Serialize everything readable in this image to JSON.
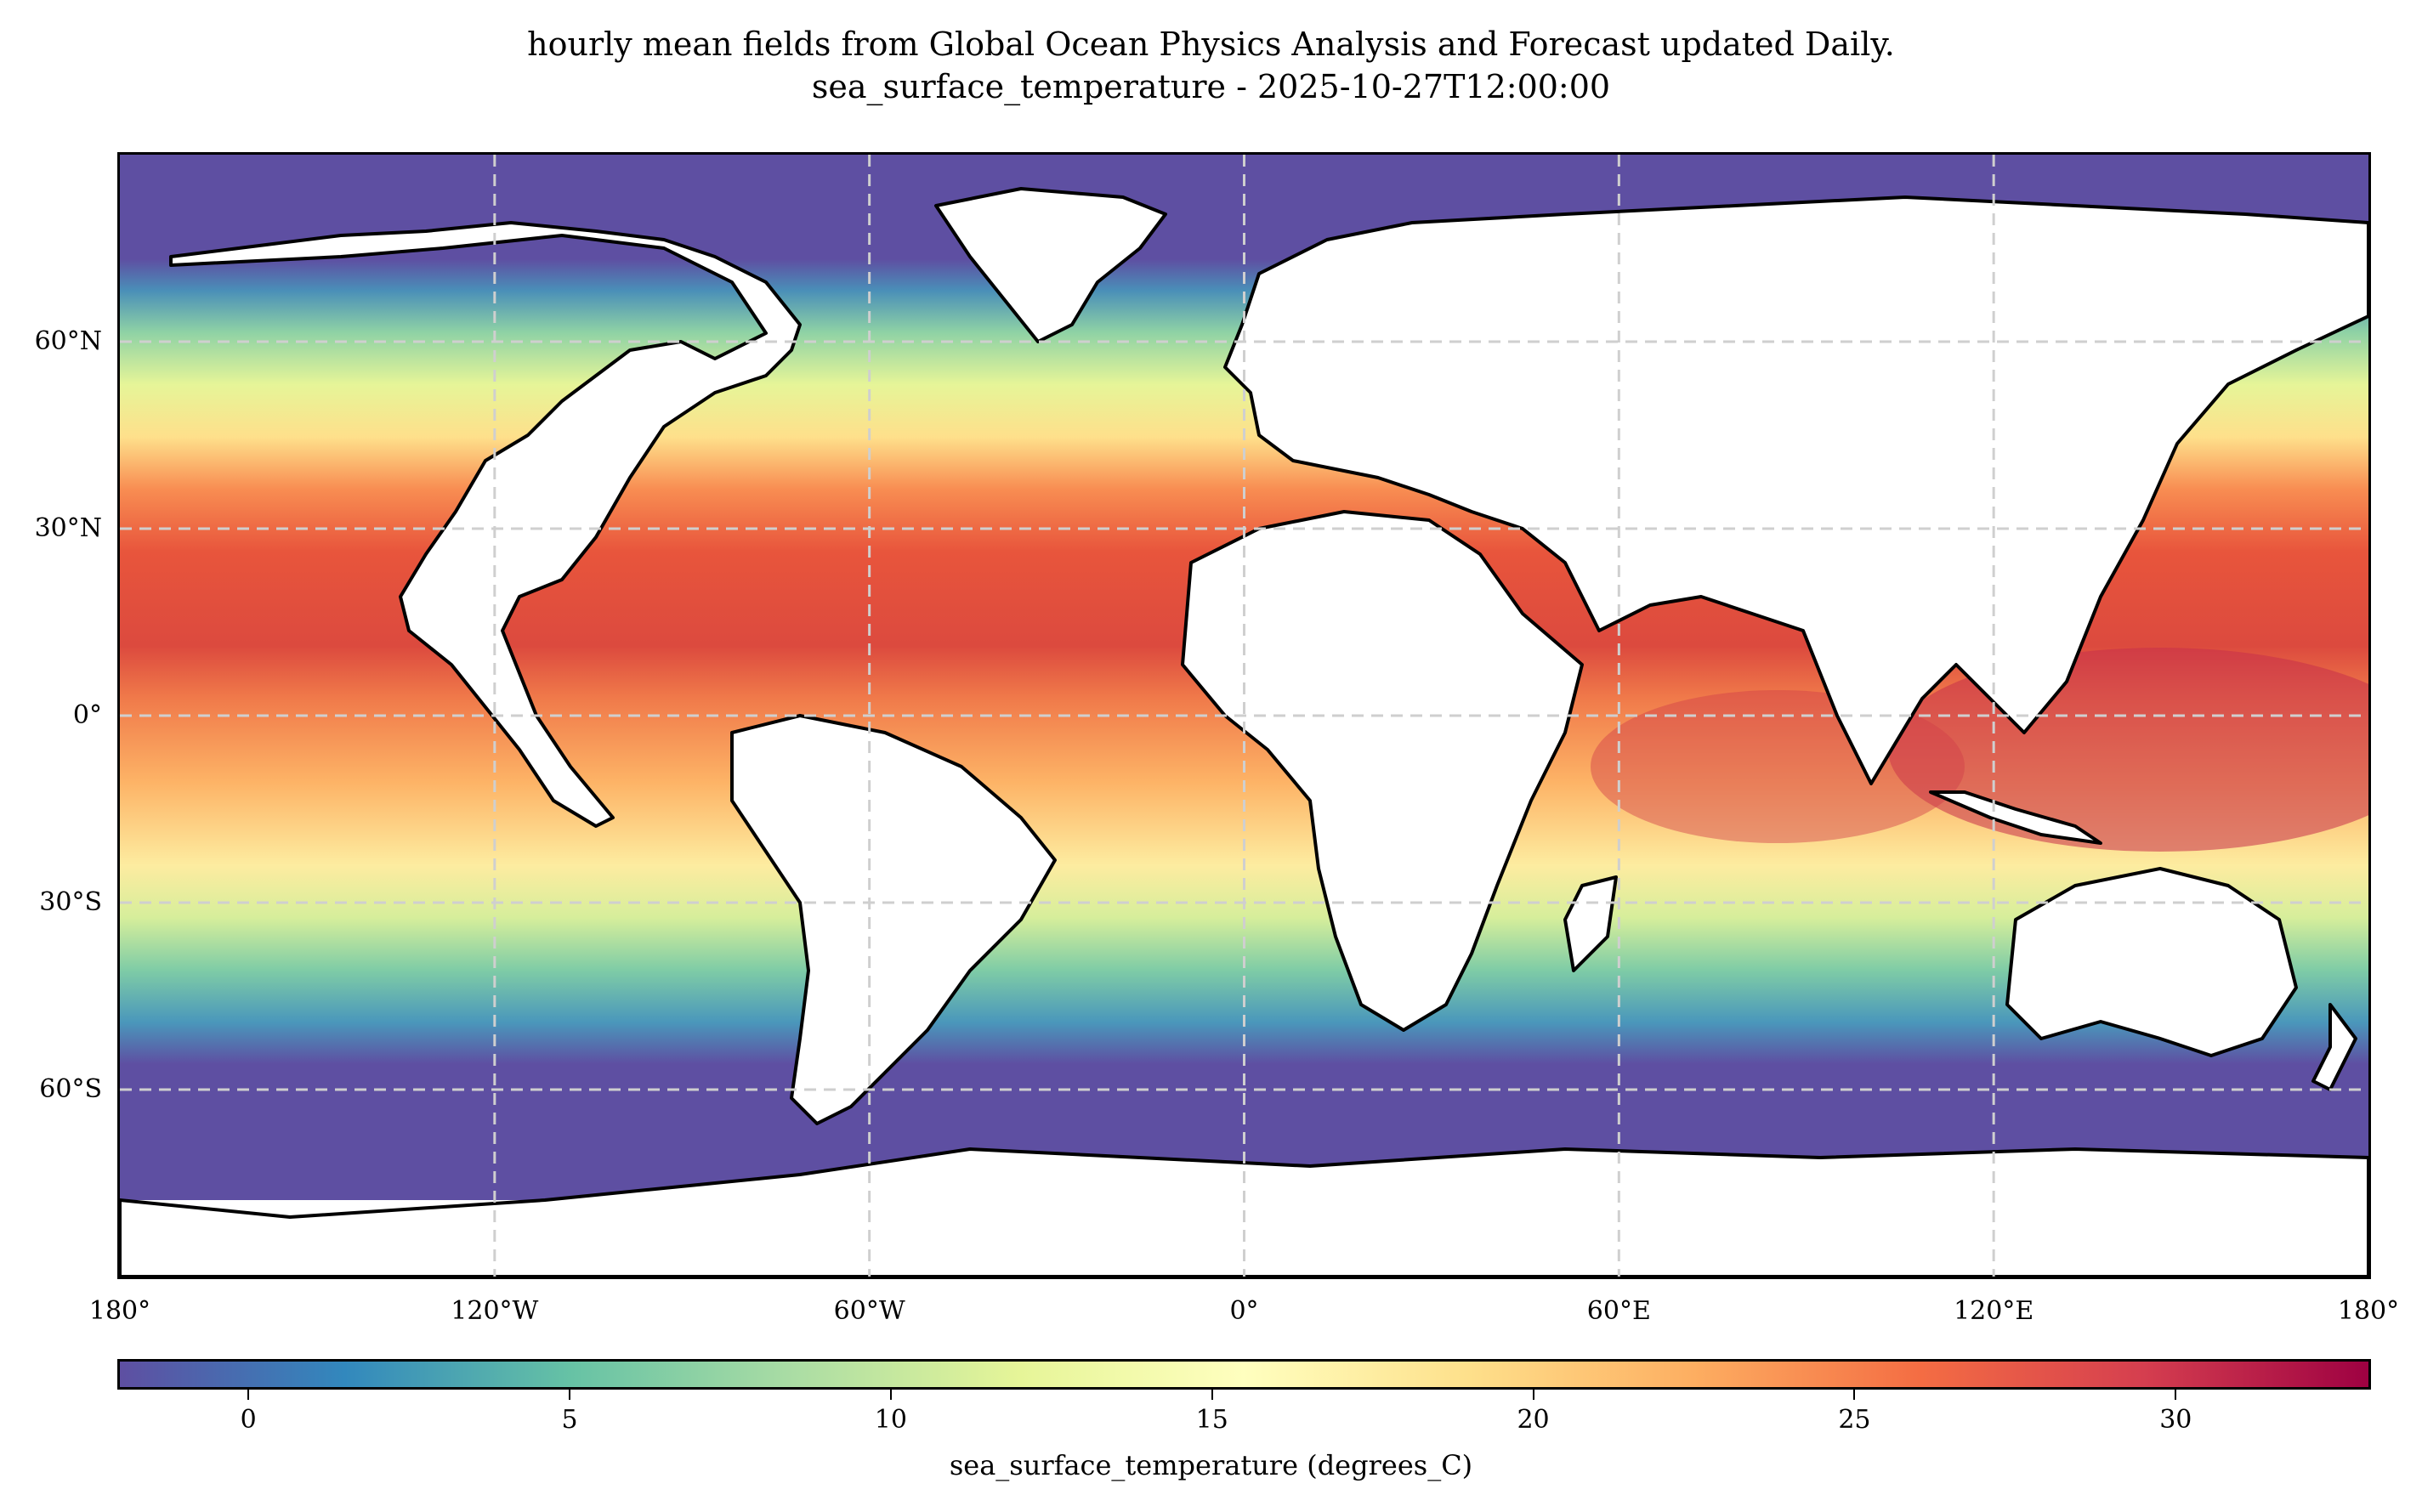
{
  "title": {
    "line1": "hourly mean fields from Global Ocean Physics Analysis and Forecast updated Daily.",
    "line2": "sea_surface_temperature - 2025-10-27T12:00:00"
  },
  "map": {
    "projection": "PlateCarree",
    "lon_range": [
      -180,
      180
    ],
    "lat_range": [
      -90,
      90
    ],
    "gridlines": "dashed, light grey",
    "lat_ticks": [
      {
        "value": 60,
        "label": "60°N"
      },
      {
        "value": 30,
        "label": "30°N"
      },
      {
        "value": 0,
        "label": "0°"
      },
      {
        "value": -30,
        "label": "30°S"
      },
      {
        "value": -60,
        "label": "60°S"
      }
    ],
    "lon_ticks": [
      {
        "value": -180,
        "label": "180°"
      },
      {
        "value": -120,
        "label": "120°W"
      },
      {
        "value": -60,
        "label": "60°W"
      },
      {
        "value": 0,
        "label": "0°"
      },
      {
        "value": 60,
        "label": "60°E"
      },
      {
        "value": 120,
        "label": "120°E"
      },
      {
        "value": 180,
        "label": "180°"
      }
    ],
    "land_color": "#ffffff",
    "coast_color": "#000000"
  },
  "colorbar": {
    "label": "sea_surface_temperature (degrees_C)",
    "vmin": -2,
    "vmax": 33,
    "colormap": "Spectral_r",
    "ticks": [
      {
        "value": 0,
        "label": "0"
      },
      {
        "value": 5,
        "label": "5"
      },
      {
        "value": 10,
        "label": "10"
      },
      {
        "value": 15,
        "label": "15"
      },
      {
        "value": 20,
        "label": "20"
      },
      {
        "value": 25,
        "label": "25"
      },
      {
        "value": 30,
        "label": "30"
      }
    ]
  }
}
